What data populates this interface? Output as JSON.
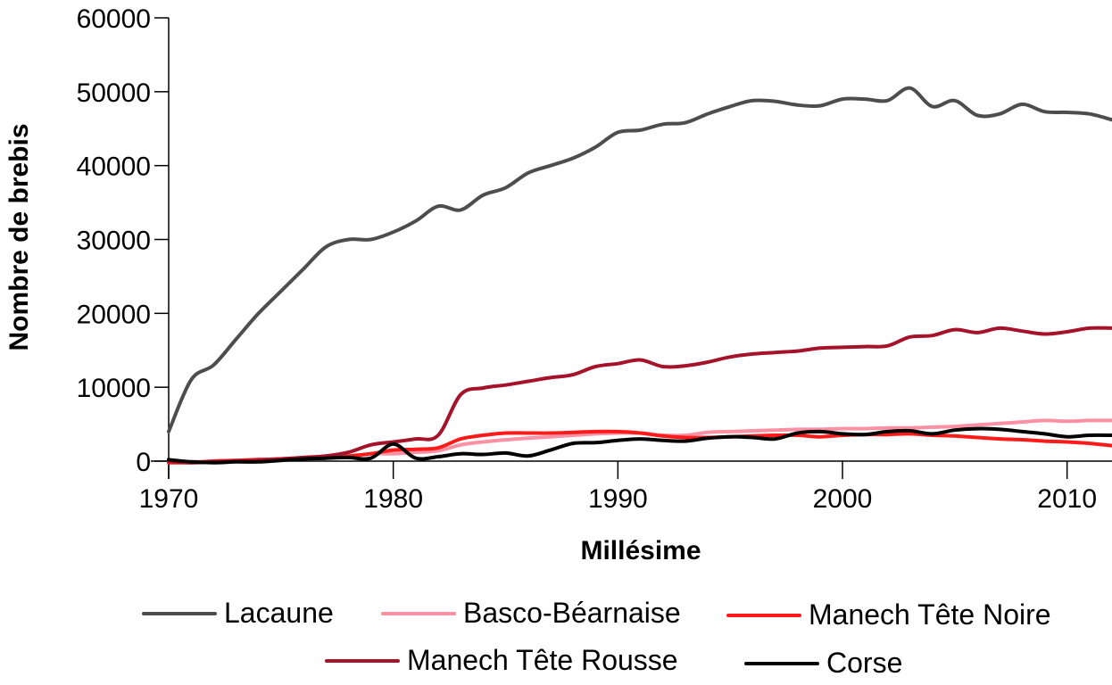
{
  "chart_data": {
    "type": "line",
    "title": "",
    "xlabel": "Millésime",
    "ylabel": "Nombre de brebis",
    "xlim": [
      1970,
      2012
    ],
    "ylim": [
      0,
      60000
    ],
    "x_ticks": [
      1970,
      1980,
      1990,
      2000,
      2010
    ],
    "y_ticks": [
      0,
      10000,
      20000,
      30000,
      40000,
      50000,
      60000
    ],
    "x_tick_labels": [
      "1970",
      "1980",
      "1990",
      "2000",
      "2010"
    ],
    "y_tick_labels": [
      "0",
      "10000",
      "20000",
      "30000",
      "40000",
      "50000",
      "60000"
    ],
    "grid": false,
    "legend_position": "bottom",
    "x": [
      1970,
      1971,
      1972,
      1973,
      1974,
      1975,
      1976,
      1977,
      1978,
      1979,
      1980,
      1981,
      1982,
      1983,
      1984,
      1985,
      1986,
      1987,
      1988,
      1989,
      1990,
      1991,
      1992,
      1993,
      1994,
      1995,
      1996,
      1997,
      1998,
      1999,
      2000,
      2001,
      2002,
      2003,
      2004,
      2005,
      2006,
      2007,
      2008,
      2009,
      2010,
      2011,
      2012
    ],
    "series": [
      {
        "name": "Lacaune",
        "color": "#4d4d4d",
        "values": [
          4000,
          11000,
          13000,
          16500,
          20000,
          23000,
          26000,
          29000,
          30000,
          30000,
          31000,
          32500,
          34500,
          34000,
          36000,
          37000,
          39000,
          40000,
          41000,
          42500,
          44500,
          44800,
          45600,
          45800,
          47000,
          48000,
          48800,
          48700,
          48200,
          48100,
          49000,
          49000,
          48800,
          50500,
          48000,
          48800,
          46800,
          47000,
          48300,
          47300,
          47200,
          47000,
          46200
        ]
      },
      {
        "name": "Basco-Béarnaise",
        "color": "#ff8fa3",
        "values": [
          0,
          -100,
          0,
          100,
          200,
          300,
          400,
          500,
          600,
          1000,
          1000,
          1200,
          1400,
          2200,
          2600,
          2900,
          3100,
          3300,
          3500,
          3700,
          3800,
          3800,
          3500,
          3500,
          3900,
          4000,
          4100,
          4200,
          4300,
          4300,
          4400,
          4400,
          4500,
          4500,
          4600,
          4700,
          4900,
          5100,
          5300,
          5500,
          5400,
          5500,
          5500
        ]
      },
      {
        "name": "Manech Tête Noire",
        "color": "#ff1a1a",
        "values": [
          -200,
          -200,
          0,
          100,
          200,
          300,
          400,
          500,
          700,
          1000,
          1500,
          1600,
          1800,
          3000,
          3500,
          3800,
          3800,
          3800,
          3900,
          4000,
          4000,
          3800,
          3400,
          3200,
          3200,
          3300,
          3400,
          3500,
          3500,
          3300,
          3500,
          3600,
          3600,
          3700,
          3500,
          3400,
          3200,
          3000,
          2900,
          2700,
          2600,
          2400,
          2100
        ]
      },
      {
        "name": "Manech Tête Rousse",
        "color": "#a5132b",
        "values": [
          0,
          -200,
          -100,
          0,
          100,
          300,
          500,
          700,
          1200,
          2200,
          2600,
          3000,
          3500,
          9000,
          9900,
          10300,
          10800,
          11300,
          11700,
          12800,
          13200,
          13700,
          12800,
          12900,
          13400,
          14100,
          14500,
          14700,
          14900,
          15300,
          15400,
          15500,
          15600,
          16800,
          17000,
          17800,
          17400,
          18000,
          17600,
          17200,
          17500,
          18000,
          18000
        ]
      },
      {
        "name": "Corse",
        "color": "#000000",
        "values": [
          200,
          -100,
          -200,
          -100,
          -100,
          100,
          300,
          400,
          500,
          400,
          2300,
          400,
          600,
          1000,
          900,
          1100,
          700,
          1500,
          2400,
          2500,
          2800,
          3000,
          2800,
          2700,
          3100,
          3300,
          3200,
          3000,
          3800,
          4000,
          3700,
          3600,
          4000,
          4100,
          3700,
          4200,
          4400,
          4300,
          4000,
          3700,
          3300,
          3500,
          3500
        ]
      }
    ]
  }
}
